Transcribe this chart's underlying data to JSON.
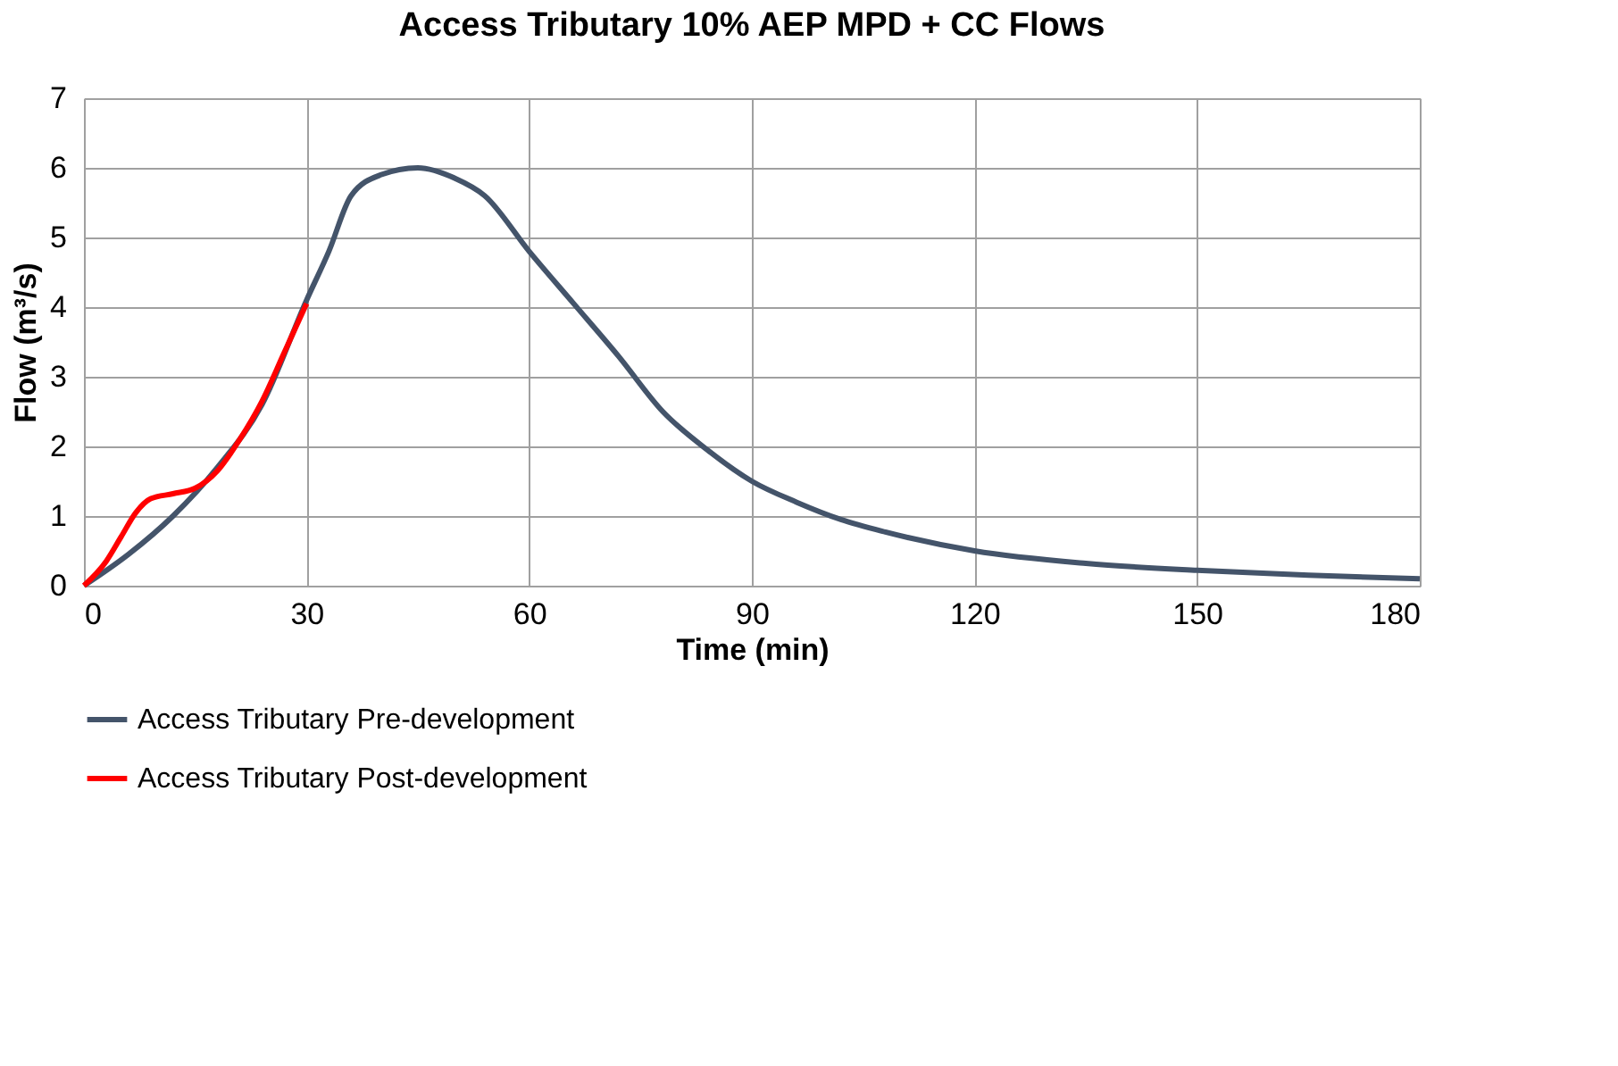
{
  "chart_data": {
    "type": "line",
    "title": "Access Tributary 10% AEP MPD + CC Flows",
    "xlabel": "Time (min)",
    "ylabel": "Flow (m³/s)",
    "xlim": [
      0,
      180
    ],
    "xticks": [
      0,
      30,
      60,
      90,
      120,
      150,
      180
    ],
    "ylim": [
      0,
      7
    ],
    "yticks": [
      0,
      1,
      2,
      3,
      4,
      5,
      6,
      7
    ],
    "grid": true,
    "legend": "bottom",
    "marker": "none",
    "line_style": "solid",
    "series": [
      {
        "name": "Access Tributary Pre-development",
        "color": "#44546a",
        "x": [
          0,
          6,
          12,
          18,
          24,
          30,
          33,
          36,
          40,
          45,
          50,
          54,
          60,
          66,
          72,
          78,
          84,
          90,
          96,
          102,
          108,
          120,
          135,
          150,
          165,
          180
        ],
        "values": [
          0,
          0.45,
          1.0,
          1.7,
          2.6,
          4.1,
          4.8,
          5.6,
          5.9,
          6.0,
          5.85,
          5.6,
          4.8,
          4.05,
          3.3,
          2.5,
          1.95,
          1.5,
          1.2,
          0.95,
          0.77,
          0.5,
          0.32,
          0.22,
          0.15,
          0.1
        ]
      },
      {
        "name": "Access Tributary Post-development",
        "color": "#ff0000",
        "x": [
          0,
          3,
          5,
          7,
          9,
          12,
          15,
          18,
          21,
          24,
          27,
          30
        ],
        "values": [
          0,
          0.35,
          0.7,
          1.05,
          1.25,
          1.32,
          1.4,
          1.65,
          2.1,
          2.65,
          3.35,
          4.05
        ]
      }
    ]
  }
}
